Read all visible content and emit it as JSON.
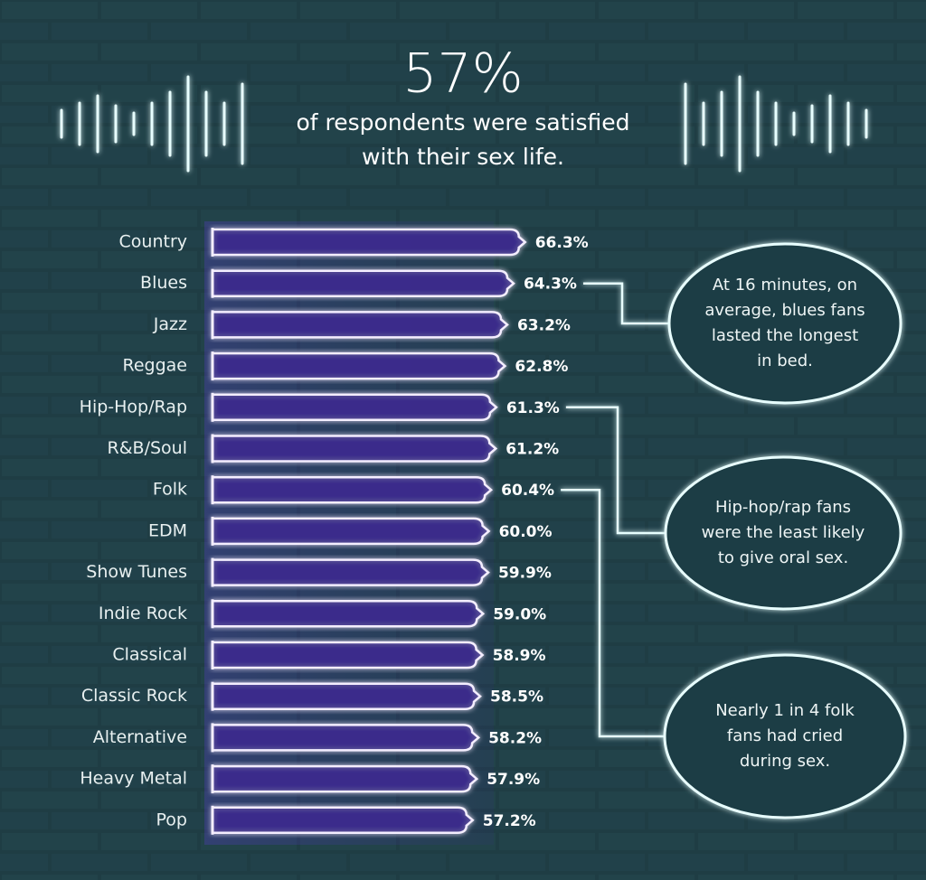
{
  "chart_data": {
    "type": "bar",
    "orientation": "horizontal",
    "title": "57%",
    "subtitle": [
      "of respondents were satisfied",
      "with their sex life."
    ],
    "categories": [
      "Country",
      "Blues",
      "Jazz",
      "Reggae",
      "Hip-Hop/Rap",
      "R&B/Soul",
      "Folk",
      "EDM",
      "Show Tunes",
      "Indie Rock",
      "Classical",
      "Classic Rock",
      "Alternative",
      "Heavy Metal",
      "Pop"
    ],
    "values": [
      66.3,
      64.3,
      63.2,
      62.8,
      61.3,
      61.2,
      60.4,
      60.0,
      59.9,
      59.0,
      58.9,
      58.5,
      58.2,
      57.9,
      57.2
    ],
    "value_labels": [
      "66.3%",
      "64.3%",
      "63.2%",
      "62.8%",
      "61.3%",
      "61.2%",
      "60.4%",
      "60.0%",
      "59.9%",
      "59.0%",
      "58.9%",
      "58.5%",
      "58.2%",
      "57.9%",
      "57.2%"
    ],
    "xlim": [
      12.5,
      70
    ],
    "color": "#3b2a8c",
    "annotations": [
      {
        "category": 1,
        "lines": [
          "At 16 minutes, on",
          "average, blues fans",
          "lasted the longest",
          "in bed."
        ]
      },
      {
        "category": 4,
        "lines": [
          "Hip-hop/rap fans",
          "were the least likely",
          "to give oral sex."
        ]
      },
      {
        "category": 6,
        "lines": [
          "Nearly 1 in 4 folk",
          "fans had cried",
          "during sex."
        ]
      }
    ]
  }
}
